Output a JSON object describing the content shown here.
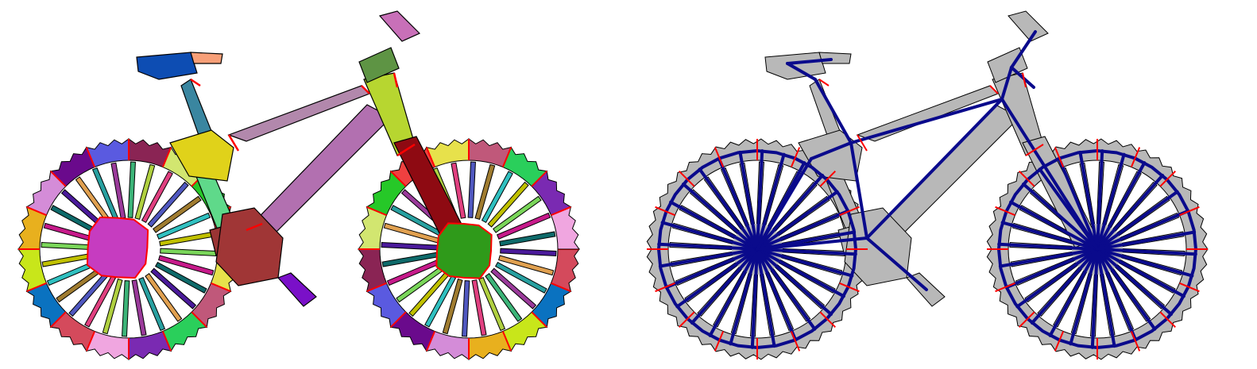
{
  "figure": {
    "panels": [
      {
        "id": "segmentation",
        "style": "colored-part-segmentation"
      },
      {
        "id": "skeleton",
        "style": "gray-silhouette-with-skeleton-graph"
      }
    ],
    "colors": {
      "outline": "#000000",
      "boundary": "#ff0000",
      "skeleton": "#0a0a8c",
      "silhouette": "#b8b8b8",
      "background": "#ffffff"
    },
    "wheels": {
      "count": 2,
      "spokes_per_wheel": 28
    }
  }
}
